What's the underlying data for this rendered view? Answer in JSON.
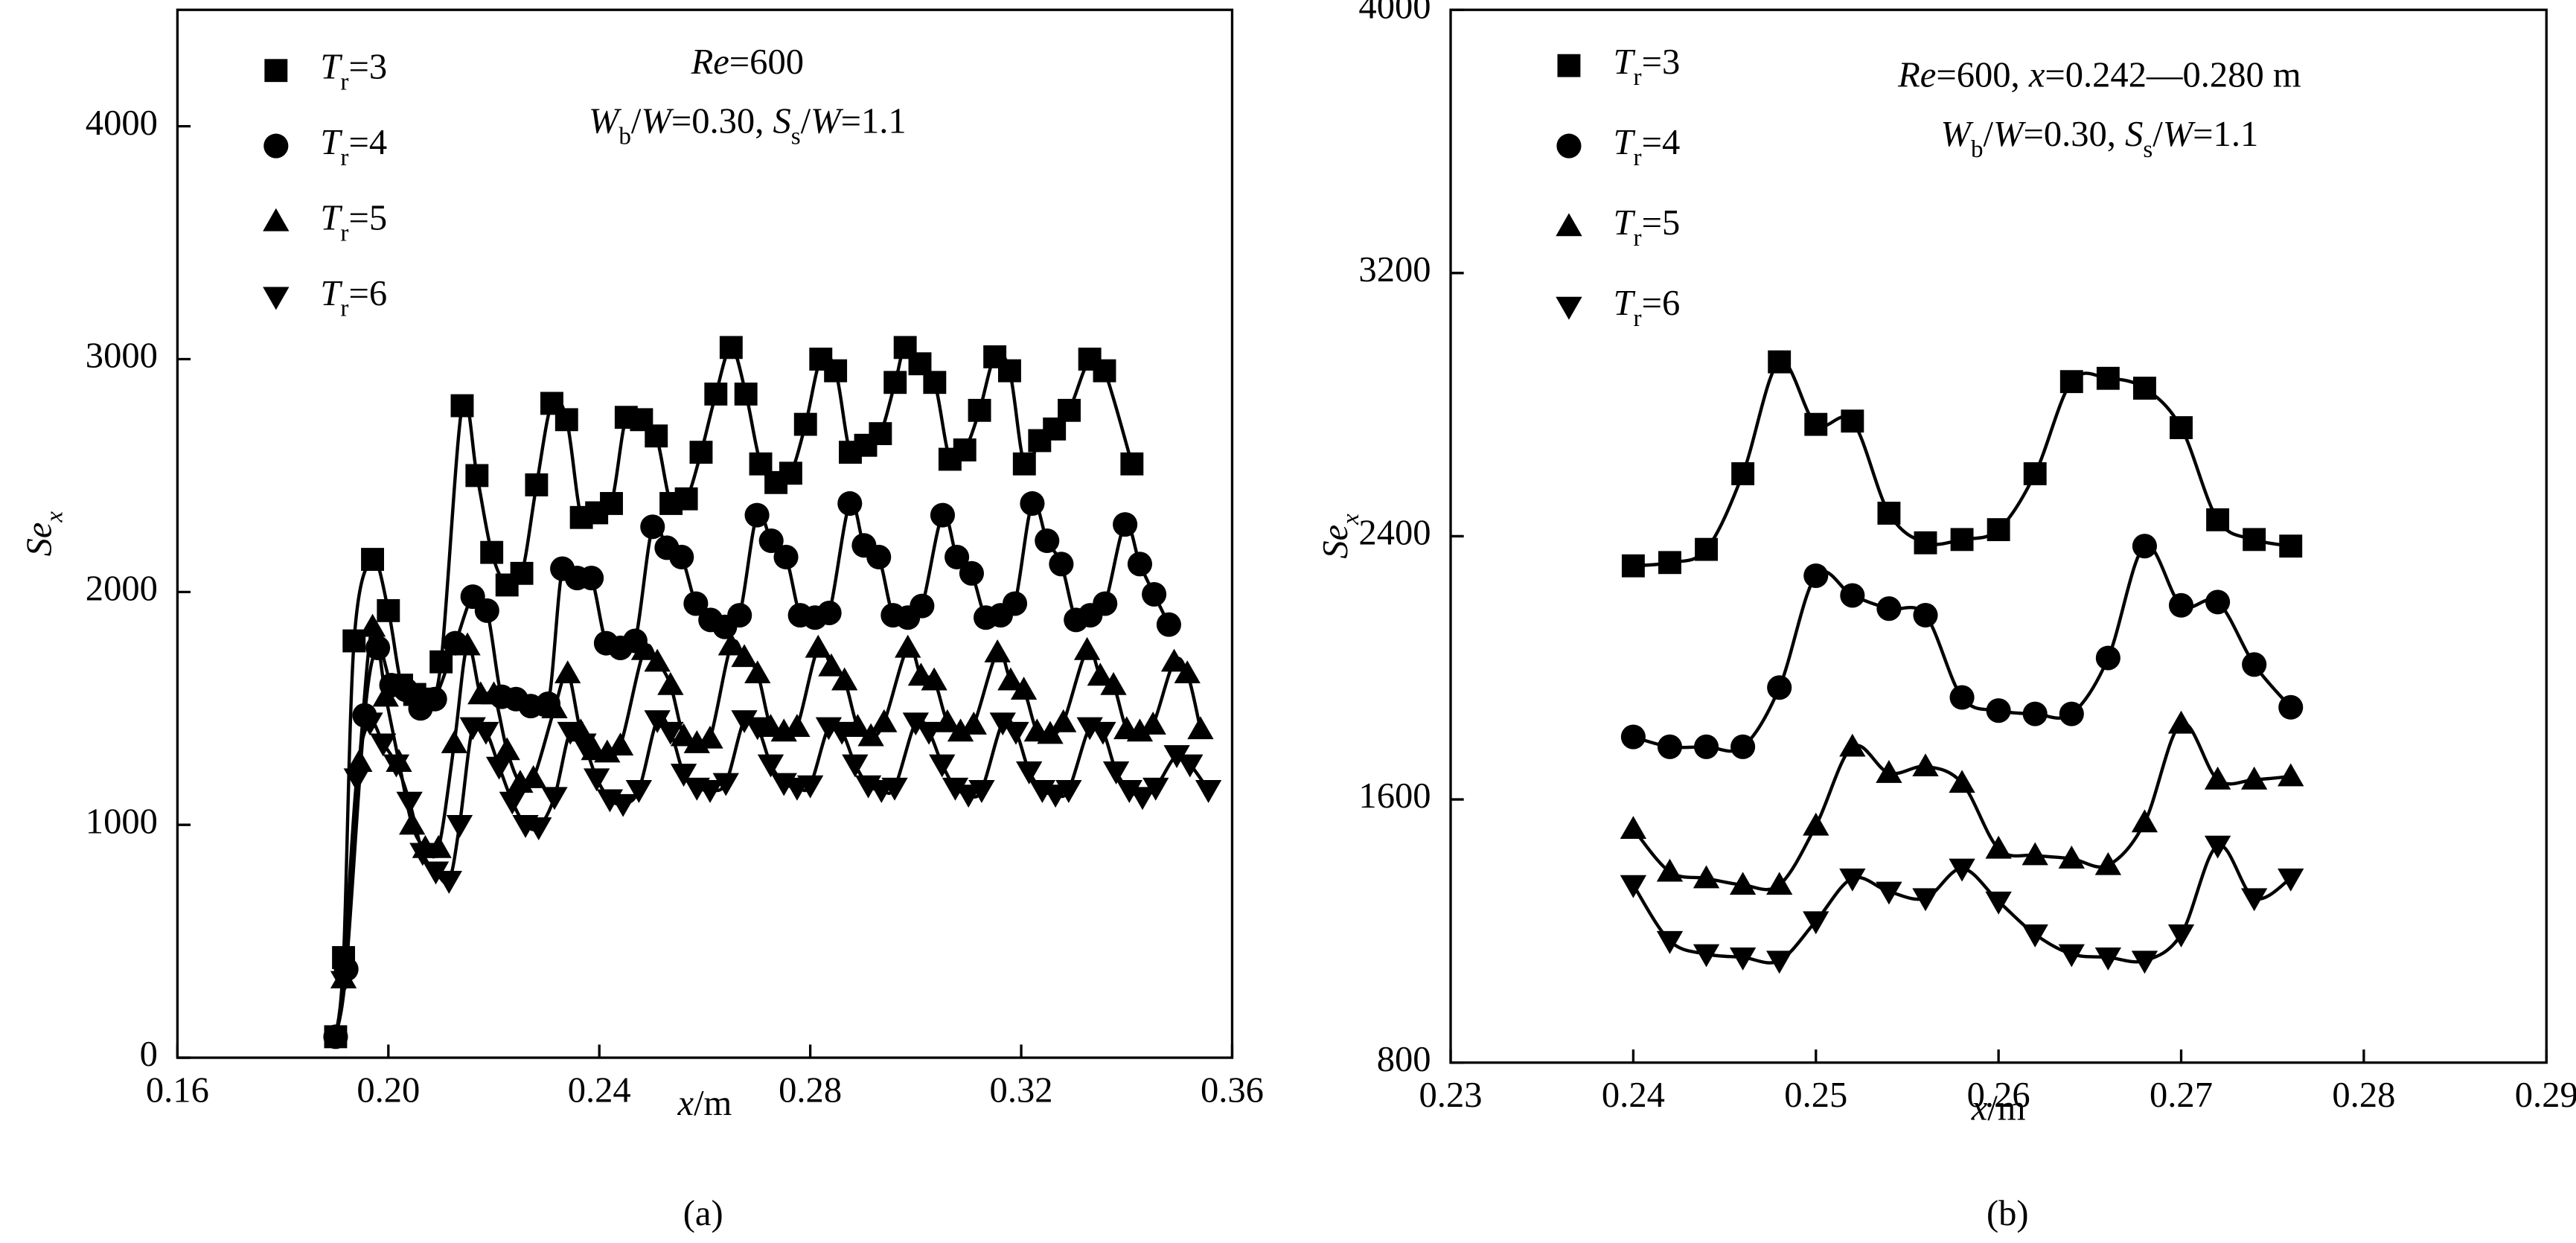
{
  "chart_data": [
    {
      "type": "line",
      "caption": "(a)",
      "xlabel": "x/m",
      "ylabel": "Sex",
      "annotations": [
        "Re=600",
        "Wb/W=0.30, Ss/W=1.1"
      ],
      "xlim": [
        0.16,
        0.36
      ],
      "xticks": [
        0.16,
        {
          "value": 0.2,
          "label": "0.20"
        },
        0.24,
        0.28,
        0.32,
        0.36
      ],
      "ylim": [
        0,
        4500
      ],
      "yticks": [
        0,
        1000,
        2000,
        3000,
        4000
      ],
      "series": [
        {
          "name": "Tr=3",
          "color": "#000000",
          "marker": "square",
          "x": [
            0.19,
            0.1915,
            0.1935,
            0.197,
            0.2,
            0.2025,
            0.205,
            0.2075,
            0.21,
            0.214,
            0.2168,
            0.2196,
            0.2225,
            0.2253,
            0.2281,
            0.231,
            0.2338,
            0.2366,
            0.2395,
            0.2423,
            0.2451,
            0.248,
            0.2508,
            0.2536,
            0.2565,
            0.2593,
            0.2621,
            0.265,
            0.2678,
            0.2706,
            0.2735,
            0.2763,
            0.2791,
            0.282,
            0.2848,
            0.2876,
            0.2905,
            0.2933,
            0.2961,
            0.298,
            0.3008,
            0.3036,
            0.3065,
            0.3093,
            0.3121,
            0.315,
            0.3178,
            0.3206,
            0.3235,
            0.3263,
            0.3291,
            0.333,
            0.3358,
            0.341
          ],
          "values": [
            90,
            430,
            1790,
            2140,
            1920,
            1600,
            1560,
            1540,
            1700,
            2800,
            2500,
            2170,
            2030,
            2080,
            2460,
            2810,
            2740,
            2320,
            2340,
            2380,
            2750,
            2740,
            2670,
            2380,
            2400,
            2600,
            2850,
            3050,
            2850,
            2550,
            2470,
            2510,
            2720,
            3000,
            2950,
            2600,
            2630,
            2680,
            2900,
            3050,
            2980,
            2900,
            2570,
            2610,
            2780,
            3010,
            2950,
            2550,
            2650,
            2700,
            2780,
            3000,
            2950,
            2550
          ]
        },
        {
          "name": "Tr=4",
          "color": "#000000",
          "marker": "circle",
          "x": [
            0.19,
            0.192,
            0.1955,
            0.198,
            0.2006,
            0.2033,
            0.2061,
            0.2088,
            0.2127,
            0.216,
            0.2187,
            0.2215,
            0.2242,
            0.227,
            0.2303,
            0.233,
            0.2358,
            0.2385,
            0.2413,
            0.244,
            0.2468,
            0.2501,
            0.2528,
            0.2556,
            0.2583,
            0.2611,
            0.2638,
            0.2666,
            0.2699,
            0.2726,
            0.2754,
            0.2781,
            0.2809,
            0.2836,
            0.2875,
            0.2902,
            0.293,
            0.2957,
            0.2985,
            0.3012,
            0.3051,
            0.3078,
            0.3106,
            0.3133,
            0.3161,
            0.3188,
            0.3221,
            0.3249,
            0.3276,
            0.3304,
            0.3331,
            0.3359,
            0.3397,
            0.3425,
            0.3452,
            0.348
          ],
          "values": [
            90,
            380,
            1470,
            1760,
            1600,
            1580,
            1500,
            1540,
            1780,
            1980,
            1920,
            1550,
            1540,
            1510,
            1520,
            2100,
            2060,
            2060,
            1780,
            1760,
            1790,
            2280,
            2190,
            2150,
            1950,
            1880,
            1850,
            1900,
            2330,
            2220,
            2150,
            1900,
            1890,
            1910,
            2380,
            2200,
            2150,
            1900,
            1890,
            1940,
            2330,
            2150,
            2080,
            1890,
            1900,
            1950,
            2380,
            2220,
            2120,
            1880,
            1900,
            1950,
            2290,
            2120,
            1990,
            1860
          ]
        },
        {
          "name": "Tr=5",
          "color": "#000000",
          "marker": "triangle-up",
          "x": [
            0.1915,
            0.1945,
            0.197,
            0.1995,
            0.202,
            0.2045,
            0.207,
            0.2095,
            0.2125,
            0.215,
            0.2175,
            0.22,
            0.2225,
            0.225,
            0.2275,
            0.2315,
            0.234,
            0.2365,
            0.239,
            0.2415,
            0.244,
            0.2485,
            0.251,
            0.2535,
            0.256,
            0.2585,
            0.261,
            0.265,
            0.2675,
            0.27,
            0.2725,
            0.275,
            0.2775,
            0.2815,
            0.284,
            0.2865,
            0.289,
            0.2915,
            0.294,
            0.2985,
            0.301,
            0.3035,
            0.306,
            0.3085,
            0.311,
            0.3155,
            0.318,
            0.3205,
            0.323,
            0.3255,
            0.328,
            0.3325,
            0.335,
            0.3375,
            0.34,
            0.3425,
            0.345,
            0.349,
            0.3515,
            0.354
          ],
          "values": [
            340,
            1270,
            1850,
            1550,
            1270,
            1000,
            900,
            900,
            1350,
            1770,
            1560,
            1560,
            1320,
            1180,
            1200,
            1500,
            1650,
            1400,
            1320,
            1310,
            1340,
            1750,
            1700,
            1600,
            1380,
            1350,
            1370,
            1770,
            1720,
            1650,
            1420,
            1400,
            1420,
            1760,
            1680,
            1620,
            1420,
            1380,
            1440,
            1760,
            1640,
            1620,
            1440,
            1400,
            1430,
            1740,
            1620,
            1580,
            1400,
            1390,
            1440,
            1750,
            1640,
            1600,
            1410,
            1400,
            1430,
            1700,
            1650,
            1410
          ]
        },
        {
          "name": "Tr=6",
          "color": "#000000",
          "marker": "triangle-down",
          "x": [
            0.1915,
            0.194,
            0.1965,
            0.199,
            0.2015,
            0.204,
            0.2065,
            0.209,
            0.2115,
            0.2135,
            0.216,
            0.2185,
            0.221,
            0.2235,
            0.226,
            0.2285,
            0.2315,
            0.2345,
            0.237,
            0.2395,
            0.242,
            0.2445,
            0.2475,
            0.251,
            0.2535,
            0.256,
            0.2585,
            0.261,
            0.264,
            0.2675,
            0.27,
            0.2725,
            0.275,
            0.2775,
            0.28,
            0.2835,
            0.286,
            0.2885,
            0.291,
            0.2935,
            0.296,
            0.3,
            0.3025,
            0.305,
            0.3075,
            0.31,
            0.3125,
            0.3165,
            0.319,
            0.3215,
            0.324,
            0.3265,
            0.329,
            0.333,
            0.3355,
            0.338,
            0.3405,
            0.343,
            0.3455,
            0.3495,
            0.352,
            0.3555
          ],
          "values": [
            330,
            1200,
            1440,
            1350,
            1260,
            1100,
            880,
            800,
            760,
            1000,
            1420,
            1400,
            1250,
            1100,
            1000,
            990,
            1120,
            1400,
            1350,
            1200,
            1110,
            1090,
            1150,
            1450,
            1400,
            1220,
            1160,
            1150,
            1180,
            1450,
            1420,
            1260,
            1180,
            1160,
            1170,
            1420,
            1400,
            1260,
            1170,
            1150,
            1160,
            1440,
            1400,
            1260,
            1160,
            1130,
            1150,
            1440,
            1400,
            1230,
            1150,
            1130,
            1150,
            1420,
            1400,
            1230,
            1150,
            1120,
            1160,
            1300,
            1260,
            1150
          ]
        }
      ]
    },
    {
      "type": "line",
      "caption": "(b)",
      "xlabel": "x/m",
      "ylabel": "Sex",
      "annotations": [
        "Re=600, x=0.242—0.280 m",
        "Wb/W=0.30, Ss/W=1.1"
      ],
      "xlim": [
        0.23,
        0.29
      ],
      "xticks": [
        0.23,
        0.24,
        0.25,
        0.26,
        0.27,
        0.28,
        0.29
      ],
      "ylim": [
        800,
        4000
      ],
      "yticks": [
        800,
        1600,
        2400,
        3200,
        4000
      ],
      "series": [
        {
          "name": "Tr=3",
          "color": "#000000",
          "marker": "square",
          "x": [
            0.24,
            0.242,
            0.244,
            0.246,
            0.248,
            0.25,
            0.252,
            0.254,
            0.256,
            0.258,
            0.26,
            0.262,
            0.264,
            0.266,
            0.268,
            0.27,
            0.272,
            0.274,
            0.276
          ],
          "values": [
            2310,
            2320,
            2360,
            2590,
            2930,
            2740,
            2750,
            2470,
            2380,
            2390,
            2420,
            2590,
            2870,
            2880,
            2850,
            2730,
            2450,
            2390,
            2370
          ]
        },
        {
          "name": "Tr=4",
          "color": "#000000",
          "marker": "circle",
          "x": [
            0.24,
            0.242,
            0.244,
            0.246,
            0.248,
            0.25,
            0.252,
            0.254,
            0.256,
            0.258,
            0.26,
            0.262,
            0.264,
            0.266,
            0.268,
            0.27,
            0.272,
            0.274,
            0.276
          ],
          "values": [
            1790,
            1760,
            1760,
            1760,
            1940,
            2280,
            2220,
            2180,
            2160,
            1910,
            1870,
            1860,
            1860,
            2030,
            2370,
            2190,
            2200,
            2010,
            1880
          ]
        },
        {
          "name": "Tr=5",
          "color": "#000000",
          "marker": "triangle-up",
          "x": [
            0.24,
            0.242,
            0.244,
            0.246,
            0.248,
            0.25,
            0.252,
            0.254,
            0.256,
            0.258,
            0.26,
            0.262,
            0.264,
            0.266,
            0.268,
            0.27,
            0.272,
            0.274,
            0.276
          ],
          "values": [
            1510,
            1380,
            1360,
            1340,
            1340,
            1520,
            1760,
            1680,
            1700,
            1650,
            1450,
            1430,
            1420,
            1400,
            1530,
            1830,
            1660,
            1660,
            1670
          ]
        },
        {
          "name": "Tr=6",
          "color": "#000000",
          "marker": "triangle-down",
          "x": [
            0.24,
            0.242,
            0.244,
            0.246,
            0.248,
            0.25,
            0.252,
            0.254,
            0.256,
            0.258,
            0.26,
            0.262,
            0.264,
            0.266,
            0.268,
            0.27,
            0.272,
            0.274,
            0.276
          ],
          "values": [
            1340,
            1170,
            1130,
            1120,
            1110,
            1230,
            1360,
            1320,
            1300,
            1390,
            1290,
            1190,
            1130,
            1120,
            1110,
            1190,
            1460,
            1300,
            1360
          ]
        }
      ]
    }
  ]
}
